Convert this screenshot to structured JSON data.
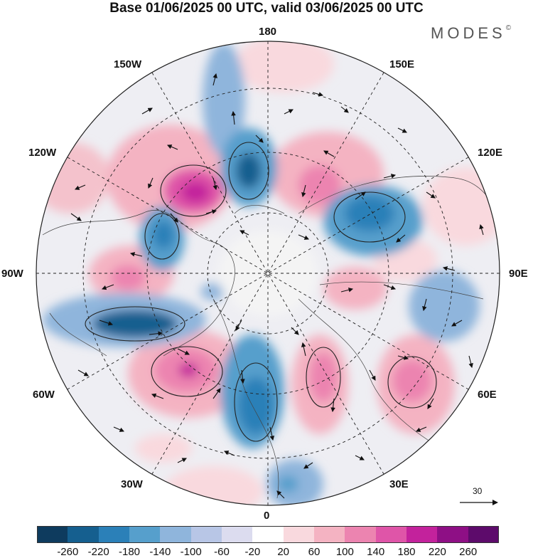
{
  "header": {
    "title": "Base 01/06/2025 00 UTC, valid 03/06/2025 00 UTC",
    "brand": "MODES",
    "brand_mark": "©"
  },
  "map": {
    "projection": "polar stereographic (north pole)",
    "graticule": "dashed",
    "field_type": "anomaly contours with wind vectors",
    "longitude_labels": [
      "180",
      "150E",
      "120E",
      "90E",
      "60E",
      "30E",
      "0",
      "30W",
      "60W",
      "90W",
      "120W",
      "150W"
    ]
  },
  "reference_vector": {
    "label": "30"
  },
  "colorbar": {
    "ticks": [
      "-260",
      "-220",
      "-180",
      "-140",
      "-100",
      "-60",
      "-20",
      "20",
      "60",
      "100",
      "140",
      "180",
      "220",
      "260"
    ],
    "colors": [
      "#0e3b5e",
      "#155f8f",
      "#2b80b8",
      "#569fcc",
      "#8fb5dc",
      "#b8c6e6",
      "#dcdcef",
      "#ffffff",
      "#f9d9de",
      "#f4b3c2",
      "#ec84b0",
      "#df55a8",
      "#c3229c",
      "#8e0f85",
      "#5d0b6b"
    ]
  }
}
